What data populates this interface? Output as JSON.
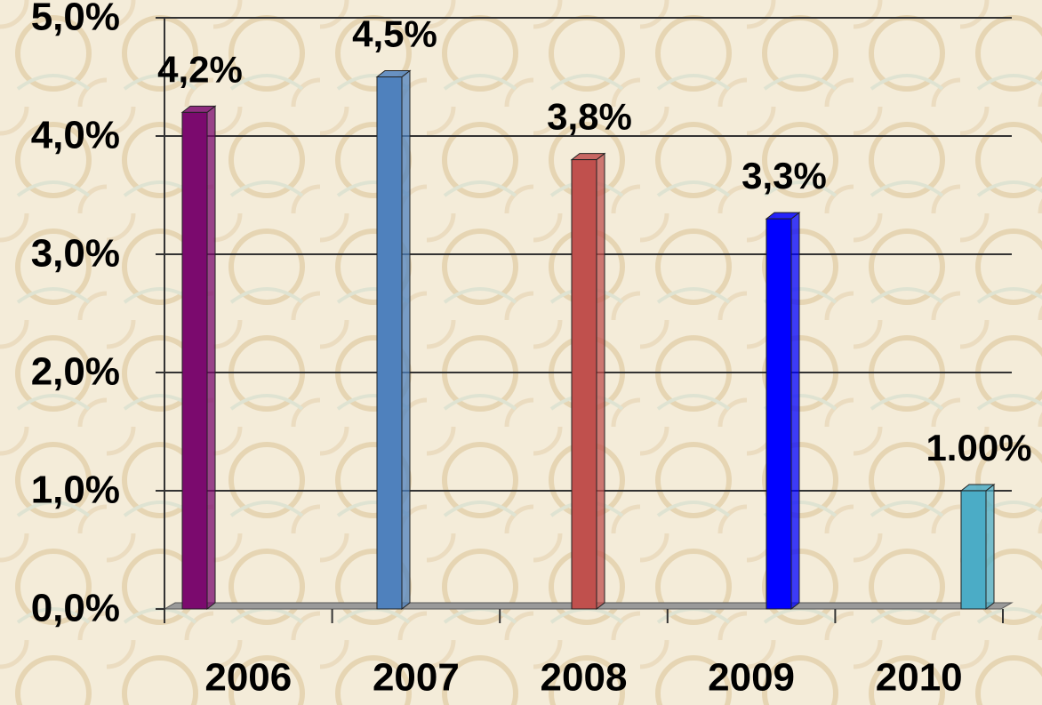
{
  "chart_data": {
    "type": "bar",
    "categories": [
      "2006",
      "2007",
      "2008",
      "2009",
      "2010"
    ],
    "series": [
      {
        "values": [
          4.2,
          4.5,
          3.8,
          3.3,
          1.0
        ],
        "value_labels": [
          "4,2%",
          "4,5%",
          "3,8%",
          "3,3%",
          "1.00%"
        ],
        "colors": [
          "#7b0a6e",
          "#4f81bd",
          "#c0504d",
          "#0000ff",
          "#4bacc6"
        ]
      }
    ],
    "ylim": [
      0,
      5
    ],
    "yticks": [
      {
        "value": 0,
        "label": "0,0%"
      },
      {
        "value": 1,
        "label": "1,0%"
      },
      {
        "value": 2,
        "label": "2,0%"
      },
      {
        "value": 3,
        "label": "3,0%"
      },
      {
        "value": 4,
        "label": "4,0%"
      },
      {
        "value": 5,
        "label": "5,0%"
      }
    ],
    "grid": true
  }
}
